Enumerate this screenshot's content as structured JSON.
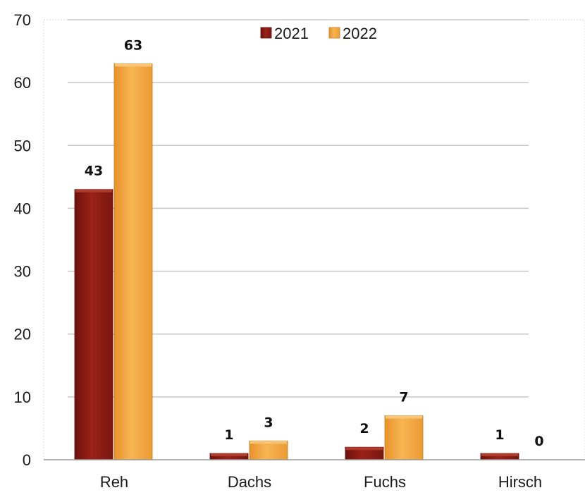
{
  "chart_data": {
    "type": "bar",
    "categories": [
      "Reh",
      "Dachs",
      "Fuchs",
      "Hirsch"
    ],
    "series": [
      {
        "name": "2021",
        "values": [
          43,
          1,
          2,
          1
        ],
        "color": "#8B1A12"
      },
      {
        "name": "2022",
        "values": [
          63,
          3,
          7,
          0
        ],
        "color": "#F2A43A"
      }
    ],
    "ylim": [
      0,
      70
    ],
    "yticks": [
      0,
      10,
      20,
      30,
      40,
      50,
      60,
      70
    ],
    "grid": true,
    "legend_position": "top"
  }
}
